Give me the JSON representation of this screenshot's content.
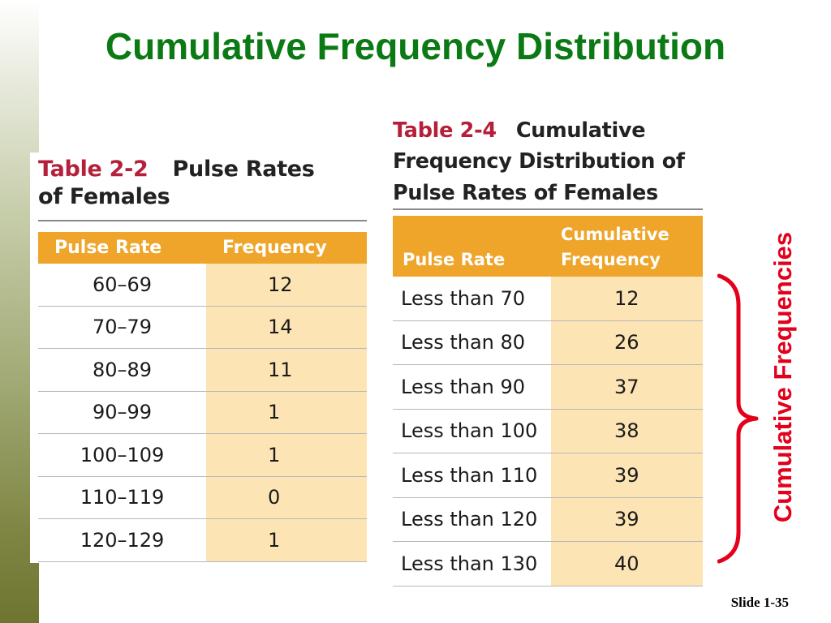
{
  "slide": {
    "title": "Cumulative Frequency Distribution",
    "number_label": "Slide 1-35",
    "side_label": "Cumulative Frequencies",
    "accent_color": "#0b7a14",
    "annotation_color": "#e3001b"
  },
  "table_2_2": {
    "number": "Table 2-2",
    "caption_line1": "Pulse Rates",
    "caption_line2": "of Females",
    "headers": [
      "Pulse Rate",
      "Frequency"
    ],
    "rows": [
      [
        "60–69",
        "12"
      ],
      [
        "70–79",
        "14"
      ],
      [
        "80–89",
        "11"
      ],
      [
        "90–99",
        "1"
      ],
      [
        "100–109",
        "1"
      ],
      [
        "110–119",
        "0"
      ],
      [
        "120–129",
        "1"
      ]
    ]
  },
  "table_2_4": {
    "number": "Table 2-4",
    "caption_line1": "Cumulative",
    "caption_line2": "Frequency Distribution of",
    "caption_line3": "Pulse Rates of Females",
    "headers": [
      "Pulse Rate",
      "Cumulative",
      "Frequency"
    ],
    "rows": [
      [
        "Less than 70",
        "12"
      ],
      [
        "Less than 80",
        "26"
      ],
      [
        "Less than 90",
        "37"
      ],
      [
        "Less than 100",
        "38"
      ],
      [
        "Less than 110",
        "39"
      ],
      [
        "Less than 120",
        "39"
      ],
      [
        "Less than 130",
        "40"
      ]
    ]
  },
  "colors": {
    "header_fill": "#eea52a",
    "value_column_fill": "#fde4b4",
    "table_number": "#b51f3a"
  }
}
